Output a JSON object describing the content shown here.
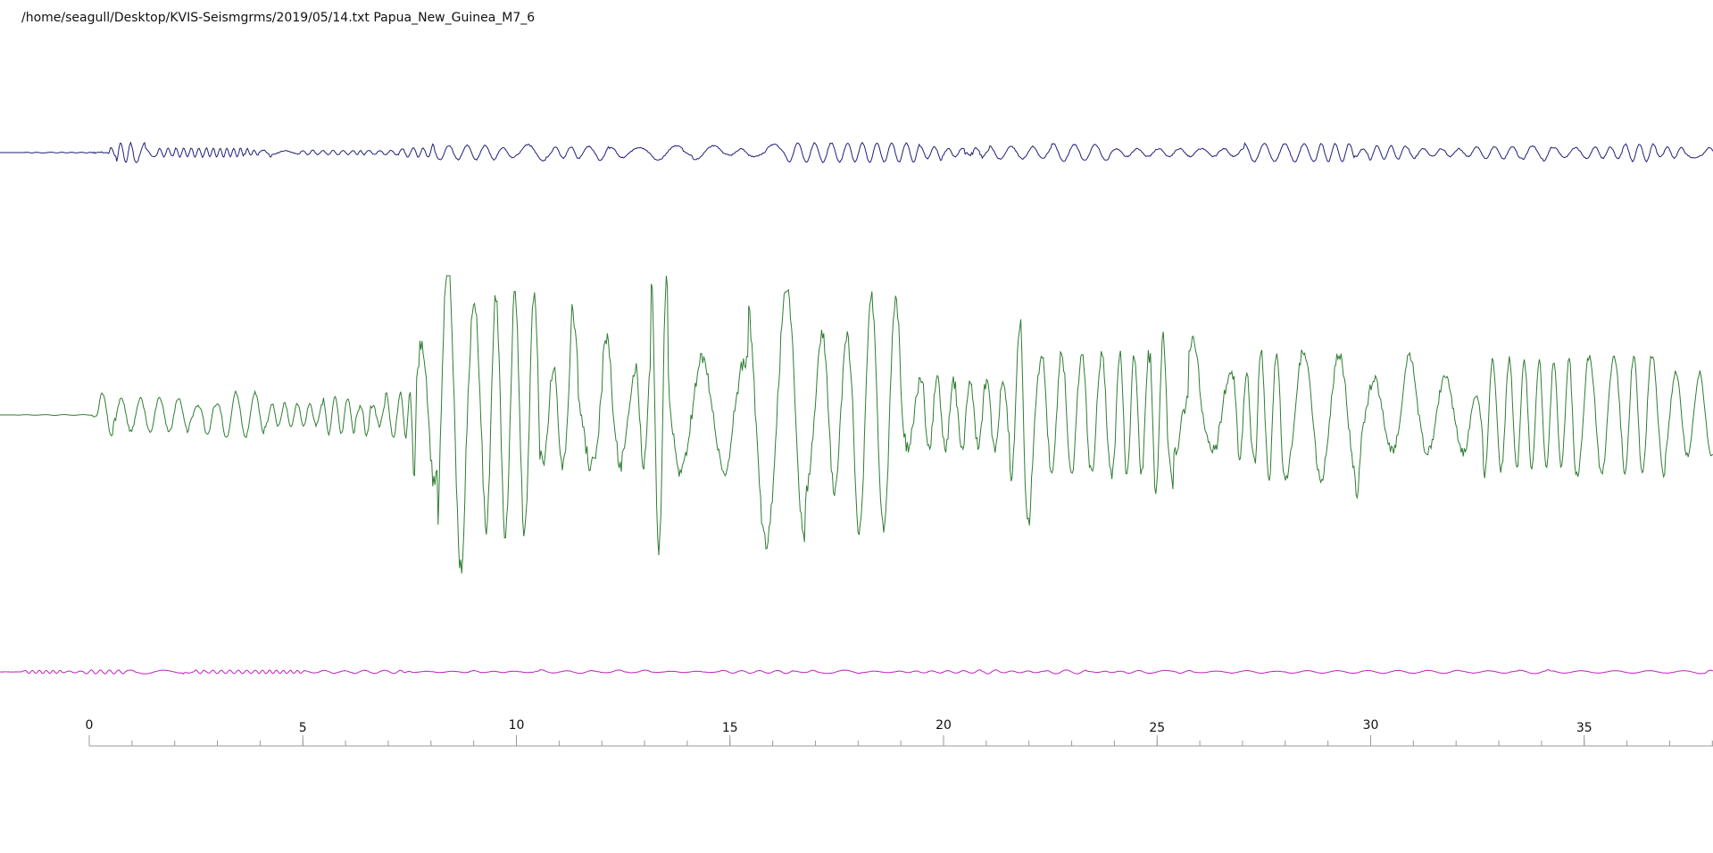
{
  "header": {
    "title": "/home/seagull/Desktop/KVIS-Seismgrms/2019/05/14.txt Papua_New_Guinea_M7_6"
  },
  "axis": {
    "ticks": [
      0,
      5,
      10,
      15,
      20,
      25,
      30,
      35
    ]
  }
}
